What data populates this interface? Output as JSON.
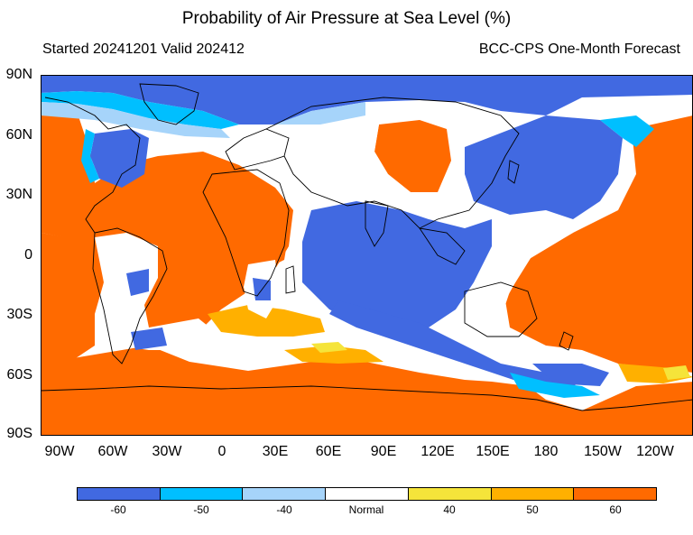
{
  "title": "Probability of Air Pressure at Sea Level (%)",
  "subtitle_left": "Started 20241201  Valid 202412",
  "subtitle_right": "BCC-CPS One-Month Forecast",
  "lat_labels": [
    "90N",
    "60N",
    "30N",
    "0",
    "30S",
    "60S",
    "90S"
  ],
  "lon_labels": [
    "90W",
    "60W",
    "30W",
    "0",
    "30E",
    "60E",
    "90E",
    "120E",
    "150E",
    "180",
    "150W",
    "120W"
  ],
  "legend": {
    "labels": [
      "-60",
      "-50",
      "-40",
      "Normal",
      "40",
      "50",
      "60"
    ],
    "colors": [
      "#4169e1",
      "#00bfff",
      "#a6d4fa",
      "#ffffff",
      "#f5e43a",
      "#ffb000",
      "#ff6a00"
    ]
  },
  "colors": {
    "land_outline": "#000000",
    "frame": "#000000"
  }
}
